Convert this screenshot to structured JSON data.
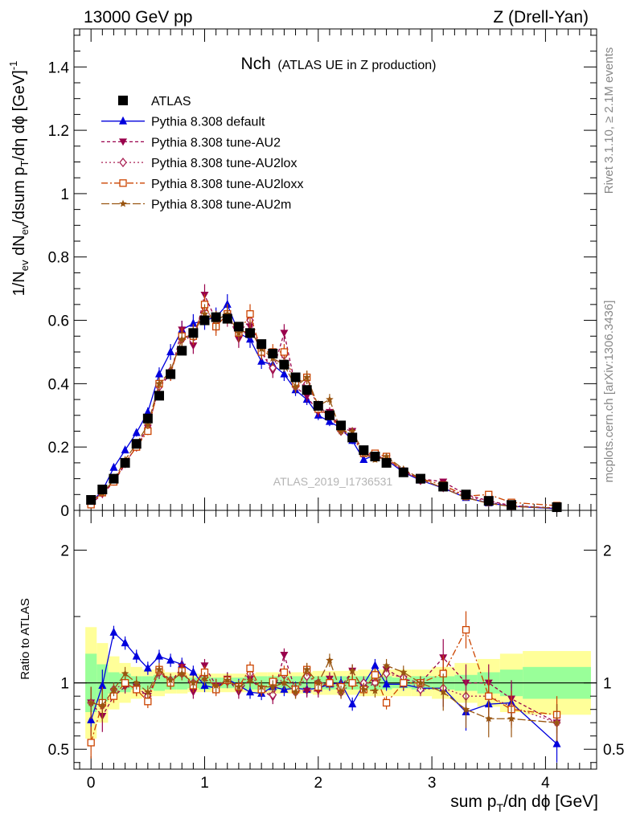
{
  "header": {
    "left": "13000 GeV pp",
    "right": "Z (Drell-Yan)"
  },
  "side_labels": {
    "rivet": "Rivet 3.1.10, ≥ 2.1M events",
    "mcplots": "mcplots.cern.ch [arXiv:1306.3436]"
  },
  "watermark": "ATLAS_2019_I1736531",
  "colors": {
    "ATLAS": "#000000",
    "default": "#0000dd",
    "AU2": "#99004c",
    "AU2lox": "#aa2255",
    "AU2loxx": "#cc4400",
    "AU2m": "#995511",
    "band_inner": "#99ff99",
    "band_outer": "#ffff99"
  },
  "chart_data": [
    {
      "type": "scatter",
      "panel": "main",
      "title": "Nch",
      "subtitle": "(ATLAS UE in Z production)",
      "xlabel": "sum p_T/dη dϕ [GeV]",
      "ylabel": "1/N_ev dN_ev/dsum p_T/dη dϕ [GeV]^-1",
      "xlim": [
        -0.15,
        4.45
      ],
      "ylim": [
        0,
        1.52
      ],
      "yticks": [
        "0",
        "0.2",
        "0.4",
        "0.6",
        "0.8",
        "1",
        "1.2",
        "1.4"
      ],
      "xticks": [
        "0",
        "1",
        "2",
        "3",
        "4"
      ],
      "legend_position": "top-left",
      "x": [
        0,
        0.1,
        0.2,
        0.3,
        0.4,
        0.5,
        0.6,
        0.7,
        0.8,
        0.9,
        1.0,
        1.1,
        1.2,
        1.3,
        1.4,
        1.5,
        1.6,
        1.7,
        1.8,
        1.9,
        2.0,
        2.1,
        2.2,
        2.3,
        2.4,
        2.5,
        2.6,
        2.75,
        2.9,
        3.1,
        3.3,
        3.5,
        3.7,
        4.1
      ],
      "series": [
        {
          "name": "ATLAS",
          "key": "ATLAS",
          "values": [
            0.033,
            0.066,
            0.1,
            0.15,
            0.21,
            0.29,
            0.362,
            0.43,
            0.504,
            0.56,
            0.6,
            0.61,
            0.605,
            0.58,
            0.56,
            0.525,
            0.495,
            0.46,
            0.42,
            0.38,
            0.33,
            0.3,
            0.268,
            0.23,
            0.19,
            0.17,
            0.15,
            0.12,
            0.1,
            0.075,
            0.05,
            0.03,
            0.017,
            0.01
          ]
        },
        {
          "name": "Pythia 8.308 default",
          "key": "default",
          "values": [
            0.025,
            0.062,
            0.135,
            0.19,
            0.245,
            0.31,
            0.43,
            0.5,
            0.57,
            0.59,
            0.6,
            0.61,
            0.65,
            0.56,
            0.54,
            0.47,
            0.46,
            0.43,
            0.38,
            0.35,
            0.3,
            0.28,
            0.26,
            0.22,
            0.16,
            0.175,
            0.16,
            0.12,
            0.095,
            0.07,
            0.04,
            0.023,
            0.013,
            0.005
          ]
        },
        {
          "name": "Pythia 8.308 tune-AU2",
          "key": "AU2",
          "values": [
            0.022,
            0.05,
            0.09,
            0.145,
            0.205,
            0.26,
            0.39,
            0.43,
            0.57,
            0.52,
            0.68,
            0.6,
            0.62,
            0.54,
            0.58,
            0.5,
            0.44,
            0.56,
            0.39,
            0.36,
            0.31,
            0.31,
            0.26,
            0.25,
            0.18,
            0.17,
            0.165,
            0.125,
            0.1,
            0.09,
            0.05,
            0.03,
            0.015,
            0.007
          ]
        },
        {
          "name": "Pythia 8.308 tune-AU2lox",
          "key": "AU2lox",
          "values": [
            0.028,
            0.055,
            0.095,
            0.15,
            0.2,
            0.26,
            0.39,
            0.44,
            0.54,
            0.56,
            0.64,
            0.59,
            0.61,
            0.56,
            0.6,
            0.5,
            0.45,
            0.49,
            0.39,
            0.4,
            0.33,
            0.3,
            0.25,
            0.23,
            0.19,
            0.17,
            0.16,
            0.125,
            0.095,
            0.072,
            0.045,
            0.027,
            0.014,
            0.007
          ]
        },
        {
          "name": "Pythia 8.308 tune-AU2loxx",
          "key": "AU2loxx",
          "values": [
            0.018,
            0.056,
            0.09,
            0.15,
            0.2,
            0.25,
            0.4,
            0.43,
            0.55,
            0.55,
            0.65,
            0.58,
            0.62,
            0.56,
            0.62,
            0.5,
            0.5,
            0.5,
            0.4,
            0.42,
            0.32,
            0.3,
            0.26,
            0.23,
            0.18,
            0.18,
            0.17,
            0.12,
            0.1,
            0.08,
            0.045,
            0.05,
            0.025,
            0.015
          ]
        },
        {
          "name": "Pythia 8.308 tune-AU2m",
          "key": "AU2m",
          "values": [
            0.028,
            0.055,
            0.095,
            0.16,
            0.21,
            0.27,
            0.4,
            0.44,
            0.54,
            0.56,
            0.62,
            0.6,
            0.62,
            0.56,
            0.57,
            0.51,
            0.48,
            0.46,
            0.39,
            0.42,
            0.33,
            0.35,
            0.25,
            0.25,
            0.18,
            0.16,
            0.17,
            0.13,
            0.1,
            0.07,
            0.04,
            0.022,
            0.012,
            0.007
          ]
        }
      ]
    },
    {
      "type": "scatter",
      "panel": "ratio",
      "ylabel": "Ratio to ATLAS",
      "xlim": [
        -0.15,
        4.45
      ],
      "ylim": [
        0.35,
        2.3
      ],
      "yticks": [
        "0.5",
        "1",
        "2"
      ],
      "reference_line": 1,
      "bands": {
        "edges": [
          -0.05,
          0.05,
          0.15,
          0.25,
          0.35,
          0.45,
          0.55,
          0.65,
          0.75,
          0.85,
          0.95,
          1.05,
          1.15,
          1.25,
          1.35,
          1.45,
          1.55,
          1.65,
          1.75,
          1.85,
          1.95,
          2.05,
          2.15,
          2.25,
          2.35,
          2.45,
          2.55,
          2.65,
          2.82,
          3.0,
          3.2,
          3.4,
          3.6,
          3.8,
          4.4
        ],
        "inner": [
          0.22,
          0.14,
          0.08,
          0.07,
          0.05,
          0.05,
          0.06,
          0.05,
          0.05,
          0.04,
          0.05,
          0.04,
          0.04,
          0.04,
          0.05,
          0.05,
          0.05,
          0.05,
          0.05,
          0.05,
          0.05,
          0.05,
          0.05,
          0.05,
          0.05,
          0.05,
          0.05,
          0.04,
          0.05,
          0.05,
          0.06,
          0.08,
          0.1,
          0.12
        ],
        "outer": [
          0.42,
          0.3,
          0.2,
          0.15,
          0.12,
          0.1,
          0.1,
          0.08,
          0.08,
          0.07,
          0.07,
          0.07,
          0.07,
          0.07,
          0.07,
          0.08,
          0.08,
          0.08,
          0.08,
          0.08,
          0.09,
          0.09,
          0.09,
          0.09,
          0.1,
          0.1,
          0.1,
          0.1,
          0.1,
          0.12,
          0.15,
          0.18,
          0.22,
          0.24
        ]
      },
      "series": [
        {
          "name": "Pythia 8.308 default",
          "key": "default",
          "values": [
            0.72,
            0.98,
            1.38,
            1.3,
            1.2,
            1.11,
            1.2,
            1.17,
            1.14,
            1.08,
            0.98,
            0.96,
            1.03,
            0.98,
            0.93,
            0.92,
            0.97,
            0.95,
            0.96,
            0.95,
            0.96,
            0.99,
            1.0,
            0.84,
            0.99,
            1.13,
            0.99,
            0.99,
            0.96,
            0.96,
            0.78,
            0.84,
            0.85,
            0.54
          ]
        },
        {
          "name": "Pythia 8.308 tune-AU2",
          "key": "AU2",
          "values": [
            0.85,
            0.75,
            0.9,
            0.97,
            0.97,
            0.9,
            1.08,
            1.0,
            1.12,
            0.93,
            1.13,
            0.98,
            1.03,
            0.93,
            1.03,
            0.95,
            0.89,
            1.21,
            0.94,
            0.94,
            0.94,
            1.03,
            0.97,
            1.09,
            0.95,
            1.0,
            1.1,
            1.03,
            1.0,
            1.19,
            1.0,
            1.0,
            0.88,
            0.7
          ]
        },
        {
          "name": "Pythia 8.308 tune-AU2lox",
          "key": "AU2lox",
          "values": [
            0.85,
            0.83,
            0.95,
            1.0,
            0.95,
            0.9,
            1.08,
            1.02,
            1.07,
            1.0,
            1.07,
            0.97,
            1.01,
            0.97,
            1.07,
            0.95,
            0.91,
            1.06,
            0.93,
            1.05,
            1.0,
            1.0,
            0.93,
            1.0,
            1.0,
            1.0,
            1.07,
            1.04,
            0.95,
            0.96,
            0.9,
            0.9,
            0.82,
            0.7
          ]
        },
        {
          "name": "Pythia 8.308 tune-AU2loxx",
          "key": "AU2loxx",
          "values": [
            0.55,
            0.85,
            0.9,
            1.0,
            0.95,
            0.86,
            1.1,
            1.0,
            1.09,
            0.98,
            1.08,
            0.95,
            1.02,
            0.97,
            1.11,
            0.95,
            1.01,
            1.08,
            0.95,
            1.1,
            0.97,
            1.0,
            0.97,
            1.0,
            0.95,
            1.06,
            0.85,
            1.0,
            1.0,
            1.07,
            1.4,
            0.9,
            0.8,
            0.76
          ]
        },
        {
          "name": "Pythia 8.308 tune-AU2m",
          "key": "AU2m",
          "values": [
            0.85,
            0.83,
            0.95,
            1.07,
            1.0,
            0.93,
            1.1,
            1.02,
            1.07,
            1.0,
            1.03,
            0.98,
            1.02,
            0.97,
            1.02,
            0.97,
            0.97,
            1.0,
            0.93,
            1.1,
            1.0,
            1.17,
            0.93,
            1.09,
            0.95,
            0.94,
            1.13,
            1.08,
            1.0,
            0.93,
            0.8,
            0.73,
            0.73,
            0.7
          ]
        }
      ]
    }
  ]
}
